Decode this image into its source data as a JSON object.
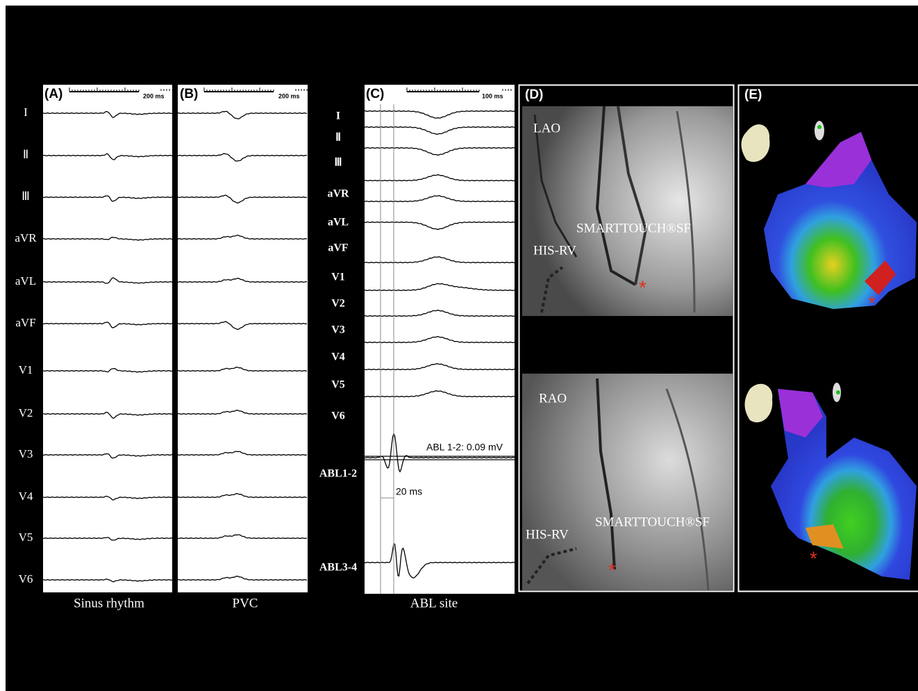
{
  "panels": {
    "A": {
      "label": "(A)",
      "scale": "200 ms",
      "caption": "Sinus rhythm",
      "leads": [
        "I",
        "Ⅱ",
        "Ⅲ",
        "aVR",
        "aVL",
        "aVF",
        "V1",
        "V2",
        "V3",
        "V4",
        "V5",
        "V6"
      ]
    },
    "B": {
      "label": "(B)",
      "scale": "200 ms",
      "caption": "PVC"
    },
    "C": {
      "label": "(C)",
      "scale": "100 ms",
      "caption": "ABL site",
      "leads": [
        "I",
        "Ⅱ",
        "Ⅲ",
        "aVR",
        "aVL",
        "aVF",
        "V1",
        "V2",
        "V3",
        "V4",
        "V5",
        "V6",
        "ABL1-2",
        "ABL3-4"
      ],
      "amplitude": "ABL 1-2: 0.09 mV",
      "interval": "20 ms"
    },
    "D": {
      "label": "(D)",
      "views": [
        {
          "view": "LAO",
          "ablation": "SMARTTOUCH®SF",
          "reference": "HIS-RV",
          "marker": "*"
        },
        {
          "view": "RAO",
          "ablation": "SMARTTOUCH®SF",
          "reference": "HIS-RV",
          "marker": "*"
        }
      ]
    },
    "E": {
      "label": "(E)",
      "markers": [
        "*",
        "*"
      ]
    }
  }
}
